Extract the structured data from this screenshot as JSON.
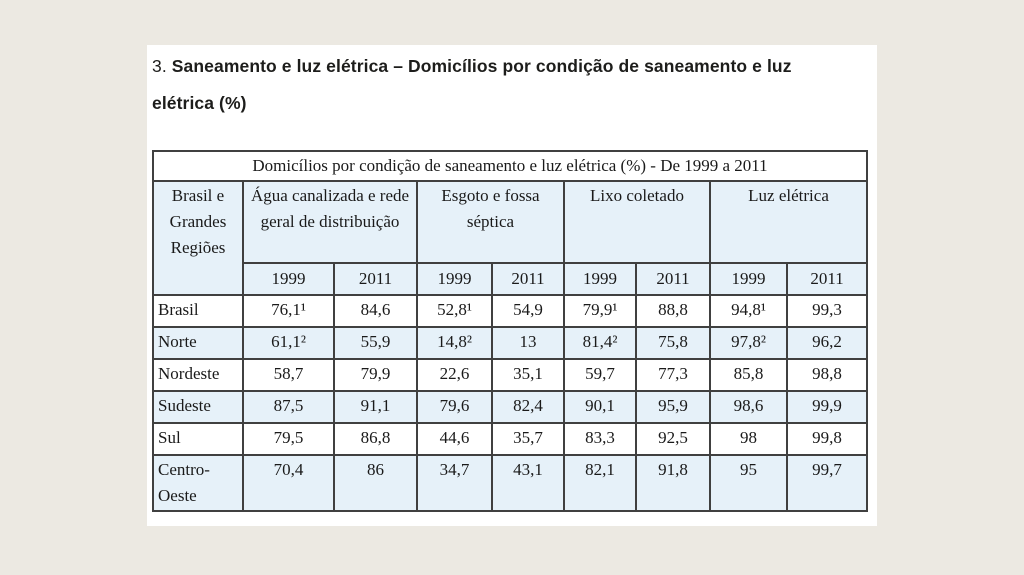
{
  "page": {
    "background_color": "#ece9e2",
    "panel_color": "#ffffff"
  },
  "heading": {
    "number": "3.",
    "text": "Saneamento e luz elétrica – Domicílios por condição de saneamento e luz elétrica (%)"
  },
  "table": {
    "caption": "Domicílios por condição de saneamento e luz elétrica (%) - De 1999 a 2011",
    "region_header": "Brasil e Grandes Regiões",
    "groups": [
      {
        "label": "Água canalizada e rede geral de distribuição"
      },
      {
        "label": "Esgoto e fossa séptica"
      },
      {
        "label": "Lixo coletado"
      },
      {
        "label": "Luz elétrica"
      }
    ],
    "year_columns": [
      "1999",
      "2011",
      "1999",
      "2011",
      "1999",
      "2011",
      "1999",
      "2011"
    ],
    "rows": [
      {
        "region": "Brasil",
        "values": [
          "76,1¹",
          "84,6",
          "52,8¹",
          "54,9",
          "79,9¹",
          "88,8",
          "94,8¹",
          "99,3"
        ]
      },
      {
        "region": "Norte",
        "values": [
          "61,1²",
          "55,9",
          "14,8²",
          "13",
          "81,4²",
          "75,8",
          "97,8²",
          "96,2"
        ]
      },
      {
        "region": "Nordeste",
        "values": [
          "58,7",
          "79,9",
          "22,6",
          "35,1",
          "59,7",
          "77,3",
          "85,8",
          "98,8"
        ]
      },
      {
        "region": "Sudeste",
        "values": [
          "87,5",
          "91,1",
          "79,6",
          "82,4",
          "90,1",
          "95,9",
          "98,6",
          "99,9"
        ]
      },
      {
        "region": "Sul",
        "values": [
          "79,5",
          "86,8",
          "44,6",
          "35,7",
          "83,3",
          "92,5",
          "98",
          "99,8"
        ]
      },
      {
        "region": "Centro-Oeste",
        "values": [
          "70,4",
          "86",
          "34,7",
          "43,1",
          "82,1",
          "91,8",
          "95",
          "99,7"
        ]
      }
    ],
    "colors": {
      "row_alt_background": "#e6f1f9",
      "row_base_background": "#ffffff",
      "border": "#404040",
      "text": "#1a1a1a"
    }
  }
}
